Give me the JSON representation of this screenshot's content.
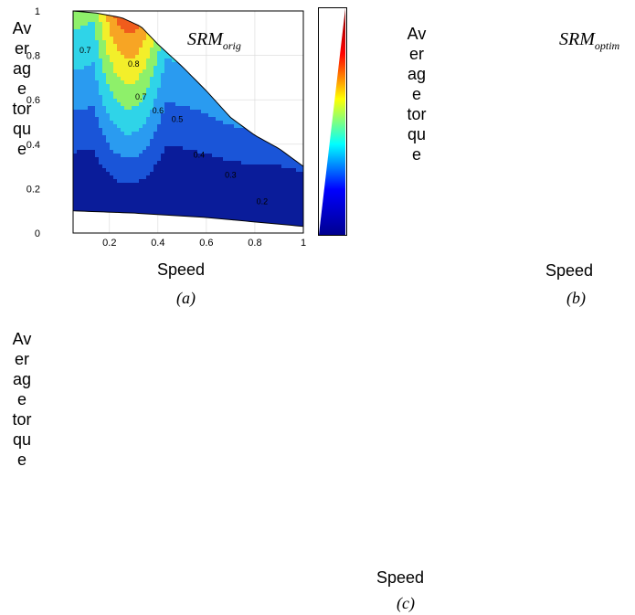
{
  "panels": [
    {
      "title_main": "SRM",
      "title_sub": "orig",
      "ylabel_lines": [
        "Av",
        "er",
        "ag",
        "e",
        "tor",
        "qu",
        "e"
      ],
      "xlabel": "Speed",
      "caption": "(a)"
    },
    {
      "title_main": "SRM",
      "title_sub": "optim",
      "ylabel_lines": [
        "Av",
        "er",
        "ag",
        "e",
        "tor",
        "qu",
        "e"
      ],
      "xlabel": "Speed",
      "caption": "(b)"
    },
    {
      "ylabel_lines": [
        "Av",
        "er",
        "ag",
        "e",
        "tor",
        "qu",
        "e"
      ],
      "xlabel": "Speed",
      "caption": "(c)"
    }
  ],
  "chart_data": {
    "type": "contour",
    "x_ticks": [
      "0.2",
      "0.4",
      "0.6",
      "0.8",
      "1"
    ],
    "x_tick_values": [
      0.2,
      0.4,
      0.6,
      0.8,
      1.0
    ],
    "y_ticks": [
      "0",
      "0.2",
      "0.4",
      "0.6",
      "0.8",
      "1"
    ],
    "y_tick_values": [
      0,
      0.2,
      0.4,
      0.6,
      0.8,
      1.0
    ],
    "xlim": [
      0.05,
      1.0
    ],
    "ylim": [
      0,
      1.0
    ],
    "grid": true,
    "colormap": "jet",
    "levels": [
      0.2,
      0.3,
      0.4,
      0.5,
      0.6,
      0.7,
      0.8
    ],
    "level_labels": [
      "0.7",
      "0.8",
      "0.7",
      "0.6",
      "0.5",
      "0.4",
      "0.3",
      "0.2"
    ],
    "level_label_values": [
      0.7,
      0.8,
      0.7,
      0.6,
      0.5,
      0.4,
      0.3,
      0.2
    ],
    "label_positions": [
      [
        0.1,
        0.81
      ],
      [
        0.3,
        0.75
      ],
      [
        0.33,
        0.6
      ],
      [
        0.4,
        0.54
      ],
      [
        0.48,
        0.5
      ],
      [
        0.57,
        0.34
      ],
      [
        0.7,
        0.25
      ],
      [
        0.83,
        0.13
      ]
    ],
    "envelope_top": [
      [
        0.05,
        1.0
      ],
      [
        0.15,
        0.99
      ],
      [
        0.25,
        0.97
      ],
      [
        0.33,
        0.93
      ],
      [
        0.4,
        0.85
      ],
      [
        0.5,
        0.75
      ],
      [
        0.6,
        0.64
      ],
      [
        0.7,
        0.52
      ],
      [
        0.8,
        0.44
      ],
      [
        0.9,
        0.38
      ],
      [
        1.0,
        0.3
      ]
    ],
    "envelope_bottom": [
      [
        0.05,
        0.1
      ],
      [
        0.3,
        0.09
      ],
      [
        0.6,
        0.07
      ],
      [
        0.8,
        0.05
      ],
      [
        1.0,
        0.03
      ]
    ],
    "colors": {
      "band_0": "#0a1c9a",
      "band_1": "#1a55d8",
      "band_2": "#2a9bf0",
      "band_3": "#2fd4e8",
      "band_4": "#8ef06a",
      "band_5": "#f3ef2a",
      "band_6": "#f7a524",
      "band_7": "#f05c1c",
      "band_8": "#c81515"
    }
  },
  "colorbar": {
    "stops": [
      "#00008f",
      "#0000ff",
      "#00ffff",
      "#ffff00",
      "#ff0000",
      "#800000"
    ]
  }
}
